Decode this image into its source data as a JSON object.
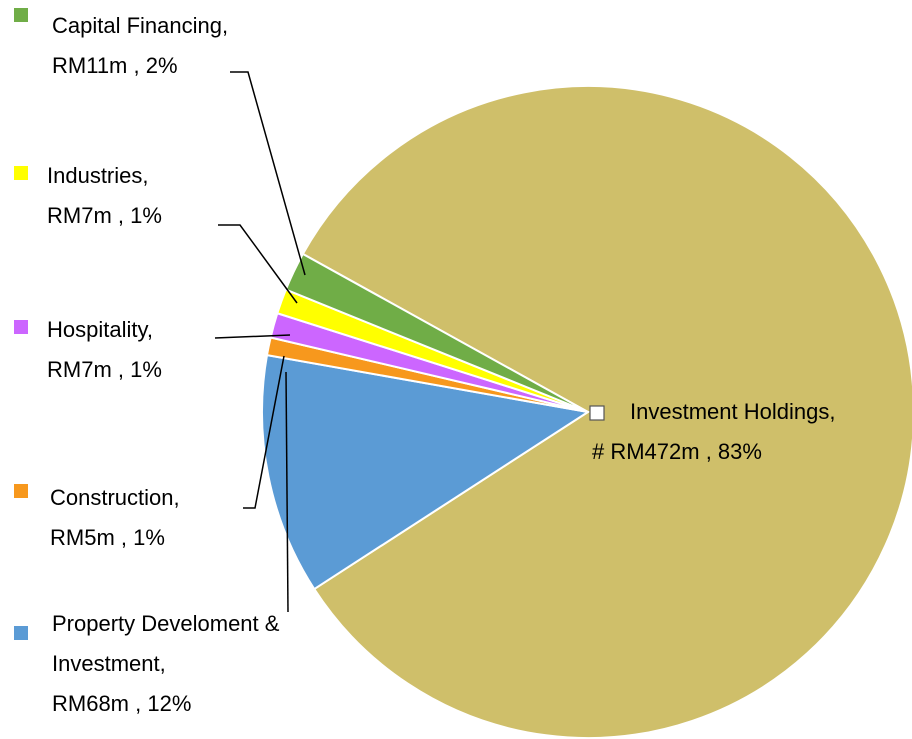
{
  "chart_data": {
    "type": "pie",
    "categories": [
      "Investment Holdings,",
      "Property Develoment & Investment,",
      "Construction,",
      "Hospitality,",
      "Industries,",
      "Capital Financing,"
    ],
    "values": [
      472,
      68,
      5,
      7,
      7,
      11
    ],
    "value_labels": [
      "# RM472m , 83%",
      "RM68m , 12%",
      "RM5m , 1%",
      "RM7m , 1%",
      "RM7m , 1%",
      "RM11m , 2%"
    ],
    "colors": [
      "#cfbf6a",
      "#5b9bd5",
      "#f7981d",
      "#cc66ff",
      "#ffff00",
      "#70ad47"
    ]
  }
}
